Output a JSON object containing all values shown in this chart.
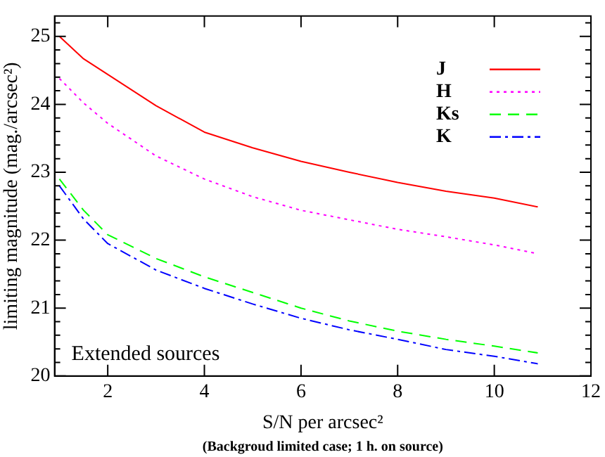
{
  "chart_data": {
    "type": "line",
    "xlabel": "S/N per arcsec²",
    "ylabel": "limiting magnitude (mag./arcsec²)",
    "annotations": [
      "Extended sources",
      "(Backgroud limited case; 1 h. on source)"
    ],
    "x": [
      1,
      1.5,
      2,
      3,
      4,
      5,
      6,
      7,
      8,
      9,
      10,
      10.9
    ],
    "series": [
      {
        "name": "J",
        "color": "#ff0000",
        "line_style": "solid",
        "values": [
          25.0,
          24.67,
          24.44,
          23.98,
          23.59,
          23.36,
          23.16,
          23.0,
          22.85,
          22.72,
          22.62,
          22.49
        ]
      },
      {
        "name": "H",
        "color": "#ff00ff",
        "line_style": "dotted",
        "values": [
          24.38,
          24.02,
          23.72,
          23.24,
          22.9,
          22.64,
          22.44,
          22.3,
          22.16,
          22.05,
          21.93,
          21.8
        ]
      },
      {
        "name": "Ks",
        "color": "#00ff00",
        "line_style": "dashed",
        "values": [
          22.9,
          22.44,
          22.08,
          21.73,
          21.46,
          21.23,
          21.0,
          20.81,
          20.66,
          20.54,
          20.44,
          20.34
        ]
      },
      {
        "name": "K",
        "color": "#0000ff",
        "line_style": "dashdot",
        "values": [
          22.8,
          22.31,
          21.95,
          21.56,
          21.29,
          21.06,
          20.85,
          20.68,
          20.54,
          20.39,
          20.29,
          20.18
        ]
      }
    ],
    "xlim": [
      0.9,
      12
    ],
    "xticks": [
      2,
      4,
      6,
      8,
      10,
      12
    ],
    "ylim": [
      20,
      25.3
    ],
    "yticks": [
      20,
      {
        "value": 20.2,
        "label": null
      },
      {
        "value": 20.4,
        "label": null
      },
      {
        "value": 20.6,
        "label": null
      },
      {
        "value": 20.8,
        "label": null
      },
      21,
      {
        "value": 21.2,
        "label": null
      },
      {
        "value": 21.4,
        "label": null
      },
      {
        "value": 21.6,
        "label": null
      },
      {
        "value": 21.8,
        "label": null
      },
      22,
      {
        "value": 22.2,
        "label": null
      },
      {
        "value": 22.4,
        "label": null
      },
      {
        "value": 22.6,
        "label": null
      },
      {
        "value": 22.8,
        "label": null
      },
      23,
      {
        "value": 23.2,
        "label": null
      },
      {
        "value": 23.4,
        "label": null
      },
      {
        "value": 23.6,
        "label": null
      },
      {
        "value": 23.8,
        "label": null
      },
      24,
      {
        "value": 24.2,
        "label": null
      },
      {
        "value": 24.4,
        "label": null
      },
      {
        "value": 24.6,
        "label": null
      },
      {
        "value": 24.8,
        "label": null
      },
      25,
      {
        "value": 25.2,
        "label": null
      }
    ],
    "grid": false,
    "legend": "top right",
    "marker": "none"
  }
}
